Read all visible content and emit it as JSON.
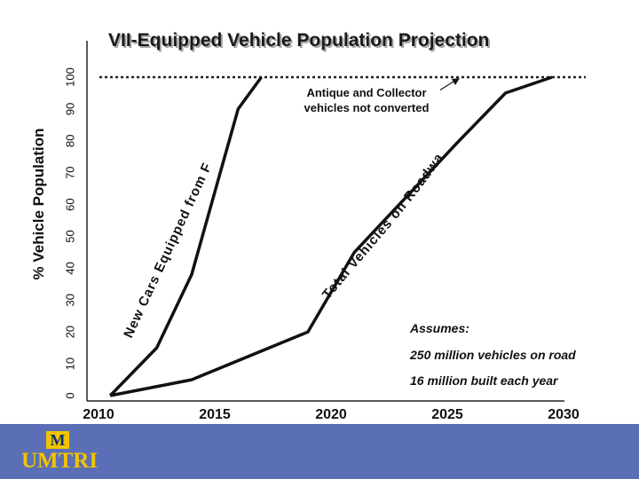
{
  "chart_data": {
    "type": "line",
    "title": "VII-Equipped Vehicle Population Projection",
    "ylabel": "% Vehicle Population",
    "xlabel": "",
    "xlim": [
      2010,
      2030
    ],
    "ylim": [
      0,
      100
    ],
    "x_ticks": [
      "2010",
      "2015",
      "2020",
      "2025",
      "2030"
    ],
    "y_ticks": [
      "0",
      "10",
      "20",
      "30",
      "40",
      "50",
      "60",
      "70",
      "80",
      "90",
      "100"
    ],
    "series": [
      {
        "name": "New Cars Equipped from Factory",
        "x": [
          2011,
          2013,
          2014.5,
          2016.5,
          2017.5
        ],
        "y": [
          0,
          15,
          38,
          90,
          100
        ]
      },
      {
        "name": "Total Vehicles on Roadway",
        "x": [
          2011,
          2014.5,
          2019.5,
          2021.5,
          2026,
          2028,
          2030
        ],
        "y": [
          0,
          5,
          20,
          45,
          80,
          95,
          100
        ]
      }
    ],
    "reference_line": {
      "y": 100,
      "style": "dotted"
    },
    "annotations": [
      "Antique and Collector vehicles not converted"
    ],
    "assumptions": {
      "heading": "Assumes:",
      "lines": [
        "250 million vehicles on road",
        "16 million built each year"
      ]
    },
    "grid": false
  },
  "footer": {
    "logo_mark": "M",
    "logo_text": "UMTRI",
    "brand_color": "#5a6fb5",
    "logo_color": "#f2c400"
  }
}
